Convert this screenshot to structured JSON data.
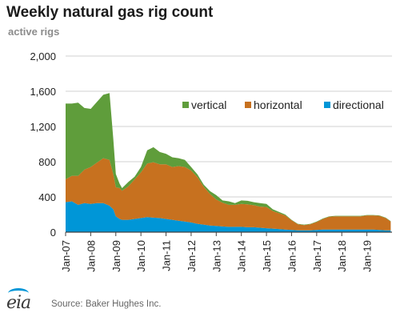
{
  "chart_data": {
    "type": "area",
    "stacked": true,
    "title": "Weekly natural gas rig count",
    "subtitle": "active rigs",
    "source": "Source: Baker Hughes Inc.",
    "logo_text": "eia",
    "ylim": [
      0,
      2000
    ],
    "y_ticks": [
      0,
      400,
      800,
      1200,
      1600,
      2000
    ],
    "y_tick_labels": [
      "0",
      "400",
      "800",
      "1,200",
      "1,600",
      "2,000"
    ],
    "xlim": [
      2007.0,
      2020.0
    ],
    "x_ticks": [
      2007,
      2008,
      2009,
      2010,
      2011,
      2012,
      2013,
      2014,
      2015,
      2016,
      2017,
      2018,
      2019
    ],
    "x_tick_labels": [
      "Jan-07",
      "Jan-08",
      "Jan-09",
      "Jan-10",
      "Jan-11",
      "Jan-12",
      "Jan-13",
      "Jan-14",
      "Jan-15",
      "Jan-16",
      "Jan-17",
      "Jan-18",
      "Jan-19"
    ],
    "grid": "horizontal",
    "legend": "top-right, inside plot",
    "x": [
      2007.0,
      2007.25,
      2007.5,
      2007.75,
      2008.0,
      2008.25,
      2008.5,
      2008.75,
      2008.9,
      2009.0,
      2009.15,
      2009.25,
      2009.5,
      2009.75,
      2010.0,
      2010.25,
      2010.5,
      2010.75,
      2011.0,
      2011.25,
      2011.5,
      2011.75,
      2012.0,
      2012.25,
      2012.5,
      2012.75,
      2013.0,
      2013.25,
      2013.5,
      2013.75,
      2014.0,
      2014.25,
      2014.5,
      2014.75,
      2015.0,
      2015.25,
      2015.5,
      2015.75,
      2016.0,
      2016.25,
      2016.5,
      2016.75,
      2017.0,
      2017.25,
      2017.5,
      2017.75,
      2018.0,
      2018.25,
      2018.5,
      2018.75,
      2019.0,
      2019.25,
      2019.5,
      2019.75,
      2019.95
    ],
    "series": [
      {
        "name": "directional",
        "color": "#0096d7",
        "values": [
          340,
          350,
          310,
          330,
          320,
          330,
          330,
          300,
          260,
          180,
          150,
          140,
          140,
          150,
          160,
          170,
          165,
          160,
          150,
          140,
          130,
          120,
          110,
          95,
          85,
          75,
          70,
          65,
          60,
          60,
          60,
          55,
          55,
          50,
          45,
          40,
          35,
          30,
          25,
          20,
          20,
          20,
          25,
          30,
          30,
          30,
          30,
          30,
          30,
          30,
          30,
          30,
          25,
          20,
          20
        ]
      },
      {
        "name": "horizontal",
        "color": "#c7711f",
        "values": [
          260,
          290,
          330,
          380,
          420,
          460,
          510,
          520,
          400,
          330,
          350,
          330,
          380,
          450,
          520,
          610,
          630,
          610,
          620,
          600,
          620,
          620,
          590,
          530,
          430,
          360,
          300,
          270,
          250,
          250,
          260,
          260,
          250,
          240,
          240,
          200,
          180,
          160,
          110,
          70,
          60,
          70,
          90,
          120,
          145,
          150,
          150,
          150,
          150,
          150,
          160,
          160,
          160,
          140,
          100
        ]
      },
      {
        "name": "vertical",
        "color": "#5f9d3b",
        "values": [
          860,
          820,
          830,
          700,
          660,
          690,
          720,
          760,
          400,
          150,
          50,
          30,
          50,
          30,
          60,
          150,
          170,
          140,
          120,
          110,
          90,
          80,
          40,
          30,
          25,
          30,
          50,
          25,
          40,
          20,
          40,
          40,
          35,
          40,
          35,
          20,
          15,
          10,
          5,
          5,
          5,
          5,
          5,
          5,
          5,
          5,
          5,
          5,
          5,
          5,
          5,
          5,
          5,
          5,
          5
        ]
      }
    ]
  }
}
